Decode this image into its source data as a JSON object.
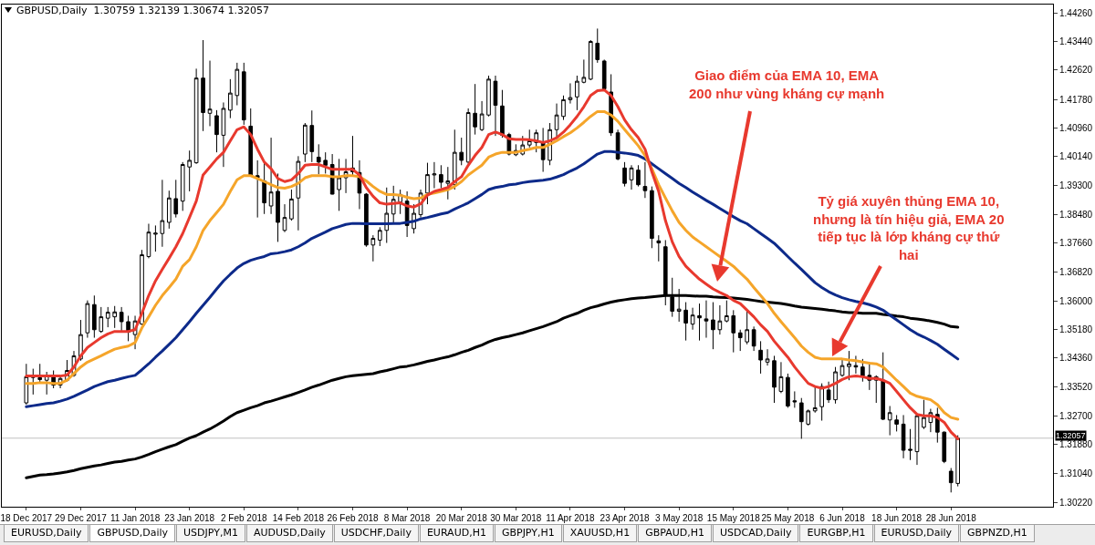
{
  "chart_data": {
    "type": "candlestick",
    "title": "GBPUSD,Daily  1.30759 1.32139 1.30674 1.32057",
    "annotations": [
      "Giao điểm của EMA 10, EMA\n200 như vùng kháng cự mạnh",
      "Tỷ giá xuyên thủng EMA 10,\nnhưng là tín hiệu giả, EMA 20\ntiếp tục là lớp kháng cự thứ\nhai",
      "EURUSD,Daily",
      "GBPUSD,Daily",
      "USDJPY,M1",
      "AUDUSD,Daily",
      "USDCHF,Daily",
      "EURAUD,H1",
      "GBPJPY,H1",
      "XAUUSD,H1",
      "GBPAUD,H1",
      "USDCAD,Daily",
      "EURGBP,H1",
      "EURUSD,Daily",
      "GBPNZD,H1"
    ],
    "categories": [
      "18 Dec 2017",
      null,
      null,
      null,
      null,
      null,
      null,
      null,
      "29 Dec 2017",
      null,
      null,
      null,
      null,
      null,
      null,
      null,
      "11 Jan 2018",
      null,
      null,
      null,
      null,
      null,
      null,
      null,
      "23 Jan 2018",
      null,
      null,
      null,
      null,
      null,
      null,
      null,
      "2 Feb 2018",
      null,
      null,
      null,
      null,
      null,
      null,
      null,
      "14 Feb 2018",
      null,
      null,
      null,
      null,
      null,
      null,
      null,
      "26 Feb 2018",
      null,
      null,
      null,
      null,
      null,
      null,
      null,
      "8 Mar 2018",
      null,
      null,
      null,
      null,
      null,
      null,
      null,
      "20 Mar 2018",
      null,
      null,
      null,
      null,
      null,
      null,
      null,
      "30 Mar 2018",
      null,
      null,
      null,
      null,
      null,
      null,
      null,
      "11 Apr 2018",
      null,
      null,
      null,
      null,
      null,
      null,
      null,
      "23 Apr 2018",
      null,
      null,
      null,
      null,
      null,
      null,
      null,
      "3 May 2018",
      null,
      null,
      null,
      null,
      null,
      null,
      null,
      "15 May 2018",
      null,
      null,
      null,
      null,
      null,
      null,
      null,
      "25 May 2018",
      null,
      null,
      null,
      null,
      null,
      null,
      null,
      "6 Jun 2018",
      null,
      null,
      null,
      null,
      null,
      null,
      null,
      "18 Jun 2018",
      null,
      null,
      null,
      null,
      null,
      null,
      null,
      "28 Jun 2018",
      null
    ],
    "ohlc": [
      [
        1.3307,
        1.3419,
        1.3302,
        1.3382
      ],
      [
        1.3384,
        1.3405,
        1.3331,
        1.338
      ],
      [
        1.3379,
        1.3419,
        1.3363,
        1.3374
      ],
      [
        1.3372,
        1.3396,
        1.3331,
        1.3386
      ],
      [
        1.3384,
        1.34,
        1.3349,
        1.3358
      ],
      [
        1.3358,
        1.3386,
        1.3349,
        1.3377
      ],
      [
        1.3372,
        1.343,
        1.3368,
        1.34
      ],
      [
        1.3386,
        1.3456,
        1.3382,
        1.3442
      ],
      [
        1.3433,
        1.3545,
        1.3428,
        1.3503
      ],
      [
        1.3508,
        1.3601,
        1.3494,
        1.3592
      ],
      [
        1.3589,
        1.3615,
        1.3494,
        1.3517
      ],
      [
        1.3512,
        1.3582,
        1.3508,
        1.3554
      ],
      [
        1.355,
        1.3582,
        1.3524,
        1.3567
      ],
      [
        1.3554,
        1.3585,
        1.3522,
        1.3568
      ],
      [
        1.3567,
        1.3582,
        1.3512,
        1.354
      ],
      [
        1.354,
        1.3557,
        1.3484,
        1.351
      ],
      [
        1.3503,
        1.3557,
        1.3461,
        1.3542
      ],
      [
        1.3533,
        1.3746,
        1.3531,
        1.3732
      ],
      [
        1.3727,
        1.3821,
        1.3722,
        1.3797
      ],
      [
        1.3791,
        1.3816,
        1.3741,
        1.3794
      ],
      [
        1.3793,
        1.3947,
        1.3755,
        1.383
      ],
      [
        1.3825,
        1.3916,
        1.3807,
        1.3895
      ],
      [
        1.3893,
        1.3947,
        1.3839,
        1.3849
      ],
      [
        1.3886,
        1.3998,
        1.3858,
        1.3991
      ],
      [
        1.3984,
        1.4031,
        1.3914,
        1.4003
      ],
      [
        1.3996,
        1.4266,
        1.3993,
        1.4239
      ],
      [
        1.4239,
        1.4348,
        1.4087,
        1.414
      ],
      [
        1.4138,
        1.4289,
        1.4101,
        1.415
      ],
      [
        1.4131,
        1.4147,
        1.4026,
        1.4077
      ],
      [
        1.4075,
        1.4169,
        1.3984,
        1.4152
      ],
      [
        1.4147,
        1.4236,
        1.4124,
        1.4196
      ],
      [
        1.4189,
        1.4283,
        1.4161,
        1.4264
      ],
      [
        1.4257,
        1.4283,
        1.4105,
        1.4119
      ],
      [
        1.4101,
        1.4152,
        1.3956,
        1.3961
      ],
      [
        1.3959,
        1.4003,
        1.3839,
        1.3953
      ],
      [
        1.3944,
        1.3998,
        1.3849,
        1.3881
      ],
      [
        1.3872,
        1.4068,
        1.3849,
        1.3912
      ],
      [
        1.3914,
        1.3965,
        1.3769,
        1.3825
      ],
      [
        1.3802,
        1.3877,
        1.3797,
        1.3839
      ],
      [
        1.3835,
        1.3919,
        1.383,
        1.3892
      ],
      [
        1.3895,
        1.4015,
        1.3802,
        1.4
      ],
      [
        1.4021,
        1.411,
        1.3998,
        1.4104
      ],
      [
        1.4103,
        1.4146,
        1.3998,
        1.4028
      ],
      [
        1.4012,
        1.4049,
        1.3963,
        1.3998
      ],
      [
        1.4003,
        1.4026,
        1.3965,
        1.3989
      ],
      [
        1.3991,
        1.4021,
        1.3905,
        1.3906
      ],
      [
        1.3919,
        1.4007,
        1.3858,
        1.3953
      ],
      [
        1.3953,
        1.4007,
        1.3909,
        1.397
      ],
      [
        1.3981,
        1.4073,
        1.3956,
        1.397
      ],
      [
        1.3968,
        1.4003,
        1.3863,
        1.3909
      ],
      [
        1.3906,
        1.3909,
        1.3755,
        1.376
      ],
      [
        1.376,
        1.3788,
        1.3713,
        1.3779
      ],
      [
        1.3774,
        1.3811,
        1.3757,
        1.3802
      ],
      [
        1.3802,
        1.3925,
        1.3766,
        1.3851
      ],
      [
        1.3849,
        1.393,
        1.3821,
        1.3891
      ],
      [
        1.3884,
        1.3919,
        1.3849,
        1.3905
      ],
      [
        1.3886,
        1.3914,
        1.3783,
        1.3816
      ],
      [
        1.3807,
        1.3877,
        1.3793,
        1.3851
      ],
      [
        1.3847,
        1.3919,
        1.3839,
        1.3909
      ],
      [
        1.3909,
        1.3996,
        1.3877,
        1.3962
      ],
      [
        1.3961,
        1.3998,
        1.3923,
        1.3964
      ],
      [
        1.3962,
        1.3989,
        1.3923,
        1.394
      ],
      [
        1.3937,
        1.3984,
        1.3891,
        1.3944
      ],
      [
        1.3933,
        1.4091,
        1.3919,
        1.4026
      ],
      [
        1.4026,
        1.4068,
        1.3989,
        1.4003
      ],
      [
        1.3998,
        1.4152,
        1.3993,
        1.414
      ],
      [
        1.4138,
        1.4222,
        1.4077,
        1.4099
      ],
      [
        1.4091,
        1.4173,
        1.4087,
        1.4136
      ],
      [
        1.4133,
        1.4246,
        1.4129,
        1.4236
      ],
      [
        1.423,
        1.4246,
        1.4073,
        1.4161
      ],
      [
        1.4159,
        1.4205,
        1.4068,
        1.4075
      ],
      [
        1.4077,
        1.4082,
        1.4017,
        1.4021
      ],
      [
        1.4019,
        1.4049,
        1.4015,
        1.4031
      ],
      [
        1.4021,
        1.4073,
        1.4017,
        1.4047
      ],
      [
        1.4047,
        1.4091,
        1.404,
        1.4059
      ],
      [
        1.4054,
        1.4091,
        1.4026,
        1.4082
      ],
      [
        1.4054,
        1.4096,
        1.397,
        1.4005
      ],
      [
        1.4003,
        1.411,
        1.3989,
        1.4091
      ],
      [
        1.4091,
        1.4166,
        1.4068,
        1.4133
      ],
      [
        1.4129,
        1.4189,
        1.4119,
        1.4177
      ],
      [
        1.4177,
        1.4224,
        1.4166,
        1.4183
      ],
      [
        1.4185,
        1.4246,
        1.4147,
        1.423
      ],
      [
        1.4227,
        1.4292,
        1.4224,
        1.4241
      ],
      [
        1.4236,
        1.4348,
        1.4233,
        1.4344
      ],
      [
        1.4339,
        1.4381,
        1.4283,
        1.4292
      ],
      [
        1.4288,
        1.4292,
        1.4203,
        1.4208
      ],
      [
        1.4199,
        1.425,
        1.4073,
        1.4082
      ],
      [
        1.4082,
        1.4091,
        1.4003,
        1.4007
      ],
      [
        1.3981,
        1.3998,
        1.3928,
        1.3937
      ],
      [
        1.3947,
        1.3989,
        1.3919,
        1.3981
      ],
      [
        1.3975,
        1.3989,
        1.3928,
        1.3933
      ],
      [
        1.3928,
        1.3998,
        1.3895,
        1.3916
      ],
      [
        1.3916,
        1.3928,
        1.3751,
        1.3779
      ],
      [
        1.3772,
        1.3788,
        1.3713,
        1.3766
      ],
      [
        1.3755,
        1.3774,
        1.3587,
        1.3615
      ],
      [
        1.3611,
        1.3666,
        1.3554,
        1.357
      ],
      [
        1.357,
        1.3634,
        1.354,
        1.3576
      ],
      [
        1.3573,
        1.3596,
        1.3486,
        1.3536
      ],
      [
        1.3533,
        1.358,
        1.3517,
        1.3559
      ],
      [
        1.3557,
        1.3592,
        1.3486,
        1.3551
      ],
      [
        1.3548,
        1.3601,
        1.3494,
        1.3542
      ],
      [
        1.3545,
        1.3596,
        1.3461,
        1.3517
      ],
      [
        1.3517,
        1.3587,
        1.3503,
        1.3542
      ],
      [
        1.3542,
        1.3601,
        1.3538,
        1.3557
      ],
      [
        1.3557,
        1.3573,
        1.3452,
        1.3508
      ],
      [
        1.3508,
        1.3517,
        1.3456,
        1.3494
      ],
      [
        1.3482,
        1.3573,
        1.3475,
        1.3517
      ],
      [
        1.3517,
        1.3526,
        1.3456,
        1.347
      ],
      [
        1.3458,
        1.3484,
        1.3391,
        1.343
      ],
      [
        1.3424,
        1.3461,
        1.3414,
        1.3433
      ],
      [
        1.3428,
        1.3442,
        1.3307,
        1.3352
      ],
      [
        1.334,
        1.3424,
        1.3335,
        1.3382
      ],
      [
        1.338,
        1.3391,
        1.3293,
        1.3298
      ],
      [
        1.3313,
        1.334,
        1.3293,
        1.331
      ],
      [
        1.3307,
        1.3321,
        1.3204,
        1.3253
      ],
      [
        1.3246,
        1.3288,
        1.3242,
        1.3284
      ],
      [
        1.3284,
        1.3354,
        1.3279,
        1.3293
      ],
      [
        1.3296,
        1.3363,
        1.3256,
        1.3354
      ],
      [
        1.3344,
        1.3368,
        1.3307,
        1.3316
      ],
      [
        1.3316,
        1.341,
        1.3305,
        1.3396
      ],
      [
        1.3386,
        1.3433,
        1.3382,
        1.3414
      ],
      [
        1.3411,
        1.3456,
        1.3372,
        1.3419
      ],
      [
        1.3414,
        1.3442,
        1.3391,
        1.341
      ],
      [
        1.341,
        1.3433,
        1.3368,
        1.3384
      ],
      [
        1.3386,
        1.3424,
        1.3344,
        1.3372
      ],
      [
        1.3372,
        1.3386,
        1.3307,
        1.3382
      ],
      [
        1.3372,
        1.3452,
        1.3258,
        1.326
      ],
      [
        1.3258,
        1.3298,
        1.3214,
        1.3279
      ],
      [
        1.3258,
        1.3272,
        1.3225,
        1.3246
      ],
      [
        1.3246,
        1.3272,
        1.3148,
        1.3171
      ],
      [
        1.3174,
        1.3232,
        1.3143,
        1.3171
      ],
      [
        1.3167,
        1.3274,
        1.3129,
        1.327
      ],
      [
        1.3237,
        1.3316,
        1.3232,
        1.3265
      ],
      [
        1.3251,
        1.329,
        1.3223,
        1.3279
      ],
      [
        1.3274,
        1.3293,
        1.3193,
        1.3223
      ],
      [
        1.3223,
        1.3225,
        1.3134,
        1.3139
      ],
      [
        1.3111,
        1.312,
        1.305,
        1.3078
      ],
      [
        1.30759,
        1.32139,
        1.30674,
        1.32057
      ]
    ],
    "series": [
      {
        "type": "line",
        "color": "#000000",
        "values": [
          1.3092,
          1.3096,
          1.31,
          1.3101,
          1.3103,
          1.3106,
          1.3109,
          1.3113,
          1.3118,
          1.3122,
          1.3126,
          1.3129,
          1.3133,
          1.3137,
          1.3139,
          1.3143,
          1.3146,
          1.3152,
          1.3159,
          1.3167,
          1.3174,
          1.3181,
          1.3187,
          1.3197,
          1.3206,
          1.3213,
          1.3223,
          1.3232,
          1.3243,
          1.3255,
          1.3268,
          1.3279,
          1.3286,
          1.3293,
          1.3299,
          1.3307,
          1.3312,
          1.3318,
          1.3324,
          1.333,
          1.3337,
          1.3344,
          1.3352,
          1.3358,
          1.3365,
          1.3372,
          1.3377,
          1.3382,
          1.3385,
          1.3387,
          1.3389,
          1.3391,
          1.3396,
          1.34,
          1.3405,
          1.341,
          1.3412,
          1.3416,
          1.3421,
          1.3426,
          1.343,
          1.3435,
          1.3439,
          1.3445,
          1.3452,
          1.3458,
          1.3466,
          1.3473,
          1.3482,
          1.3489,
          1.3494,
          1.3498,
          1.3503,
          1.3508,
          1.3514,
          1.352,
          1.3526,
          1.3533,
          1.354,
          1.355,
          1.3557,
          1.3564,
          1.3573,
          1.358,
          1.3585,
          1.3591,
          1.3596,
          1.36,
          1.3603,
          1.3606,
          1.3608,
          1.3609,
          1.3611,
          1.3613,
          1.3615,
          1.3615,
          1.3615,
          1.3615,
          1.3614,
          1.3613,
          1.3613,
          1.3611,
          1.361,
          1.3609,
          1.3608,
          1.3606,
          1.3604,
          1.3601,
          1.3598,
          1.3596,
          1.3594,
          1.3592,
          1.3589,
          1.3585,
          1.3582,
          1.358,
          1.3578,
          1.3576,
          1.3573,
          1.3571,
          1.3568,
          1.3566,
          1.3566,
          1.3564,
          1.3564,
          1.3564,
          1.3561,
          1.3559,
          1.3556,
          1.3554,
          1.355,
          1.3548,
          1.3545,
          1.3542,
          1.3538,
          1.3533,
          1.3526,
          1.3524
        ]
      },
      {
        "type": "line",
        "color": "#0d2a8a",
        "values": [
          1.3296,
          1.3299,
          1.3302,
          1.3305,
          1.3307,
          1.3312,
          1.3318,
          1.3326,
          1.3335,
          1.3344,
          1.3354,
          1.3361,
          1.3368,
          1.3372,
          1.3377,
          1.3382,
          1.3386,
          1.3402,
          1.3419,
          1.3438,
          1.3456,
          1.3475,
          1.3494,
          1.3517,
          1.354,
          1.3564,
          1.3587,
          1.361,
          1.3634,
          1.3657,
          1.3676,
          1.3694,
          1.3707,
          1.3716,
          1.3722,
          1.3727,
          1.3735,
          1.3737,
          1.3741,
          1.3746,
          1.3755,
          1.3766,
          1.3779,
          1.3788,
          1.3797,
          1.3807,
          1.3813,
          1.3819,
          1.3822,
          1.3822,
          1.3821,
          1.3821,
          1.3821,
          1.3821,
          1.3822,
          1.3822,
          1.3825,
          1.3828,
          1.3835,
          1.3839,
          1.3844,
          1.3849,
          1.3853,
          1.3863,
          1.3872,
          1.3881,
          1.3893,
          1.3905,
          1.3919,
          1.3925,
          1.3928,
          1.3933,
          1.3935,
          1.3939,
          1.3942,
          1.3944,
          1.3946,
          1.3949,
          1.3955,
          1.3962,
          1.3972,
          1.3981,
          1.3993,
          1.4007,
          1.4021,
          1.4028,
          1.4028,
          1.4026,
          1.4024,
          1.4021,
          1.4017,
          1.4007,
          1.3993,
          1.3979,
          1.3965,
          1.3951,
          1.3937,
          1.3925,
          1.3912,
          1.39,
          1.3888,
          1.3877,
          1.3865,
          1.3853,
          1.3841,
          1.383,
          1.3821,
          1.3807,
          1.3793,
          1.3779,
          1.3765,
          1.3746,
          1.3727,
          1.3708,
          1.369,
          1.3671,
          1.3652,
          1.3638,
          1.3626,
          1.3617,
          1.3609,
          1.3603,
          1.3598,
          1.3594,
          1.3589,
          1.3582,
          1.3573,
          1.3559,
          1.3545,
          1.3531,
          1.3517,
          1.3505,
          1.3496,
          1.3486,
          1.3475,
          1.3461,
          1.3447,
          1.3433
        ]
      },
      {
        "type": "line",
        "color": "#f5a52a",
        "values": [
          1.3363,
          1.3363,
          1.3365,
          1.3365,
          1.3363,
          1.3363,
          1.3372,
          1.3391,
          1.341,
          1.3424,
          1.3433,
          1.3442,
          1.3452,
          1.3461,
          1.3466,
          1.347,
          1.348,
          1.3522,
          1.3554,
          1.3587,
          1.3615,
          1.3638,
          1.3662,
          1.3699,
          1.3718,
          1.3755,
          1.3802,
          1.383,
          1.3853,
          1.3877,
          1.3914,
          1.3947,
          1.3959,
          1.3959,
          1.3951,
          1.3942,
          1.3933,
          1.3925,
          1.3923,
          1.3928,
          1.3937,
          1.3953,
          1.3959,
          1.3959,
          1.3959,
          1.3956,
          1.3956,
          1.3959,
          1.3959,
          1.3956,
          1.3944,
          1.3928,
          1.3914,
          1.3905,
          1.3905,
          1.3903,
          1.3897,
          1.3893,
          1.3895,
          1.3905,
          1.3909,
          1.3914,
          1.3919,
          1.3928,
          1.3942,
          1.3961,
          1.3975,
          1.3989,
          1.4012,
          1.4021,
          1.4026,
          1.4026,
          1.4026,
          1.4031,
          1.4035,
          1.404,
          1.404,
          1.4049,
          1.4059,
          1.4071,
          1.4082,
          1.4096,
          1.4112,
          1.4129,
          1.4143,
          1.4143,
          1.4133,
          1.4115,
          1.4091,
          1.4068,
          1.4045,
          1.4017,
          1.3979,
          1.3933,
          1.3895,
          1.3858,
          1.3825,
          1.3802,
          1.3783,
          1.3769,
          1.3755,
          1.3741,
          1.3727,
          1.3713,
          1.3699,
          1.368,
          1.3662,
          1.3638,
          1.3615,
          1.3592,
          1.3564,
          1.354,
          1.3517,
          1.3494,
          1.347,
          1.3452,
          1.3438,
          1.3433,
          1.3433,
          1.3433,
          1.3433,
          1.343,
          1.3428,
          1.3424,
          1.3421,
          1.3419,
          1.341,
          1.3391,
          1.3372,
          1.3354,
          1.3335,
          1.3326,
          1.3321,
          1.3316,
          1.3302,
          1.3279,
          1.3265,
          1.326
        ]
      },
      {
        "type": "line",
        "color": "#e8392e",
        "values": [
          1.3384,
          1.3384,
          1.3384,
          1.3384,
          1.3384,
          1.3384,
          1.3387,
          1.341,
          1.3442,
          1.3466,
          1.348,
          1.3494,
          1.3505,
          1.3512,
          1.3512,
          1.3512,
          1.3517,
          1.3564,
          1.3615,
          1.3657,
          1.369,
          1.3722,
          1.3755,
          1.3793,
          1.3839,
          1.3886,
          1.3961,
          1.3984,
          1.4007,
          1.4026,
          1.4059,
          1.4091,
          1.4099,
          1.4077,
          1.4035,
          1.3998,
          1.3979,
          1.3951,
          1.3942,
          1.3947,
          1.3965,
          1.3989,
          1.3991,
          1.3991,
          1.3984,
          1.3977,
          1.3977,
          1.3977,
          1.3977,
          1.3961,
          1.3925,
          1.39,
          1.3881,
          1.3877,
          1.3879,
          1.3881,
          1.3872,
          1.3869,
          1.3878,
          1.3903,
          1.3914,
          1.3919,
          1.3925,
          1.3942,
          1.3956,
          1.3989,
          1.4017,
          1.404,
          1.4077,
          1.4084,
          1.4077,
          1.4065,
          1.4063,
          1.4063,
          1.4062,
          1.4059,
          1.4054,
          1.4059,
          1.4068,
          1.4084,
          1.4105,
          1.4129,
          1.4157,
          1.4189,
          1.4203,
          1.4205,
          1.4189,
          1.4157,
          1.4119,
          1.4091,
          1.4068,
          1.4035,
          1.397,
          1.3914,
          1.383,
          1.3769,
          1.3727,
          1.3699,
          1.368,
          1.3662,
          1.3648,
          1.3634,
          1.3624,
          1.3615,
          1.3601,
          1.3592,
          1.3573,
          1.3554,
          1.3531,
          1.3512,
          1.3484,
          1.3461,
          1.3438,
          1.341,
          1.3386,
          1.3363,
          1.3354,
          1.3349,
          1.3354,
          1.3363,
          1.3374,
          1.3382,
          1.3384,
          1.3382,
          1.3377,
          1.3377,
          1.3372,
          1.3363,
          1.334,
          1.3316,
          1.3293,
          1.3274,
          1.327,
          1.327,
          1.3265,
          1.3251,
          1.3223,
          1.3204
        ]
      }
    ],
    "ylim": [
      1.3009,
      1.445
    ],
    "yticks": [
      {
        "value": 1.4426,
        "label": "1.44260"
      },
      {
        "value": 1.4344,
        "label": "1.43440"
      },
      {
        "value": 1.4262,
        "label": "1.42620"
      },
      {
        "value": 1.4178,
        "label": "1.41780"
      },
      {
        "value": 1.4096,
        "label": "1.40960"
      },
      {
        "value": 1.4014,
        "label": "1.40140"
      },
      {
        "value": 1.393,
        "label": "1.39300"
      },
      {
        "value": 1.3848,
        "label": "1.38480"
      },
      {
        "value": 1.3766,
        "label": "1.37660"
      },
      {
        "value": 1.3682,
        "label": "1.36820"
      },
      {
        "value": 1.36,
        "label": "1.36000"
      },
      {
        "value": 1.3518,
        "label": "1.35180"
      },
      {
        "value": 1.3436,
        "label": "1.34360"
      },
      {
        "value": 1.3352,
        "label": "1.33520"
      },
      {
        "value": 1.327,
        "label": "1.32700"
      },
      {
        "value": 1.3188,
        "label": "1.31880"
      },
      {
        "value": 1.3104,
        "label": "1.31040"
      },
      {
        "value": 1.3022,
        "label": "1.30220"
      }
    ],
    "ref_lines": [
      {
        "axis": "y",
        "value": 1.32057,
        "label": "1.32057",
        "color": "#c0c0c0"
      }
    ]
  }
}
